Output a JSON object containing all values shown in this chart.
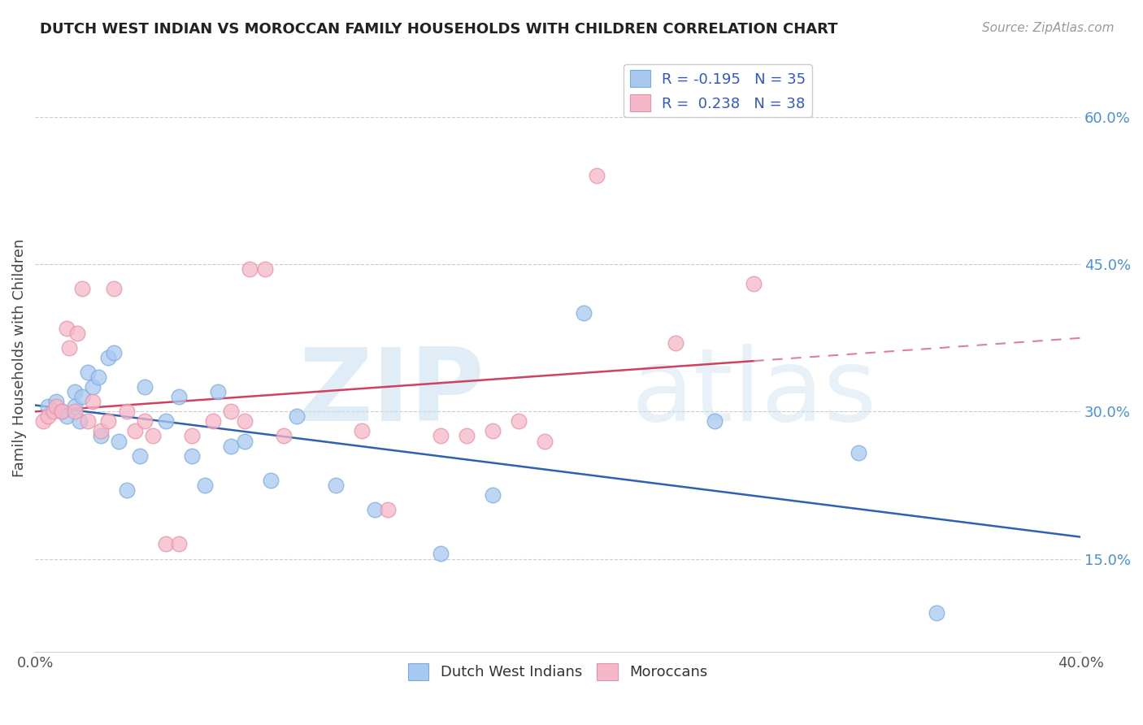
{
  "title": "DUTCH WEST INDIAN VS MOROCCAN FAMILY HOUSEHOLDS WITH CHILDREN CORRELATION CHART",
  "source": "Source: ZipAtlas.com",
  "ylabel": "Family Households with Children",
  "xlim": [
    0.0,
    0.4
  ],
  "ylim": [
    0.055,
    0.655
  ],
  "yticks": [
    0.15,
    0.3,
    0.45,
    0.6
  ],
  "ytick_labels": [
    "15.0%",
    "30.0%",
    "45.0%",
    "60.0%"
  ],
  "xticks": [
    0.0,
    0.05,
    0.1,
    0.15,
    0.2,
    0.25,
    0.3,
    0.35,
    0.4
  ],
  "legend_entry1_r": "R = -0.195",
  "legend_entry1_n": "N = 35",
  "legend_entry2_r": "R =  0.238",
  "legend_entry2_n": "N = 38",
  "color_blue_fill": "#a8c8f0",
  "color_blue_edge": "#7aabdf",
  "color_pink_fill": "#f5b8c8",
  "color_pink_edge": "#e890a8",
  "color_blue_line": "#3060b0",
  "color_pink_line": "#d04060",
  "color_pink_line_dash": "#e08090",
  "dutch_x": [
    0.005,
    0.008,
    0.01,
    0.012,
    0.015,
    0.015,
    0.017,
    0.018,
    0.02,
    0.022,
    0.024,
    0.025,
    0.028,
    0.03,
    0.032,
    0.035,
    0.04,
    0.042,
    0.05,
    0.055,
    0.06,
    0.065,
    0.07,
    0.075,
    0.08,
    0.09,
    0.1,
    0.115,
    0.13,
    0.155,
    0.175,
    0.21,
    0.26,
    0.315,
    0.345
  ],
  "dutch_y": [
    0.305,
    0.31,
    0.3,
    0.295,
    0.32,
    0.305,
    0.29,
    0.315,
    0.34,
    0.325,
    0.335,
    0.275,
    0.355,
    0.36,
    0.27,
    0.22,
    0.255,
    0.325,
    0.29,
    0.315,
    0.255,
    0.225,
    0.32,
    0.265,
    0.27,
    0.23,
    0.295,
    0.225,
    0.2,
    0.155,
    0.215,
    0.4,
    0.29,
    0.258,
    0.095
  ],
  "moroccan_x": [
    0.003,
    0.005,
    0.007,
    0.008,
    0.01,
    0.012,
    0.013,
    0.015,
    0.016,
    0.018,
    0.02,
    0.022,
    0.025,
    0.028,
    0.03,
    0.035,
    0.038,
    0.042,
    0.045,
    0.05,
    0.055,
    0.06,
    0.068,
    0.075,
    0.08,
    0.082,
    0.088,
    0.095,
    0.125,
    0.135,
    0.155,
    0.165,
    0.175,
    0.185,
    0.195,
    0.215,
    0.245,
    0.275
  ],
  "moroccan_y": [
    0.29,
    0.295,
    0.3,
    0.305,
    0.3,
    0.385,
    0.365,
    0.3,
    0.38,
    0.425,
    0.29,
    0.31,
    0.28,
    0.29,
    0.425,
    0.3,
    0.28,
    0.29,
    0.275,
    0.165,
    0.165,
    0.275,
    0.29,
    0.3,
    0.29,
    0.445,
    0.445,
    0.275,
    0.28,
    0.2,
    0.275,
    0.275,
    0.28,
    0.29,
    0.27,
    0.54,
    0.37,
    0.43
  ],
  "watermark_zip": "ZIP",
  "watermark_atlas": "atlas"
}
